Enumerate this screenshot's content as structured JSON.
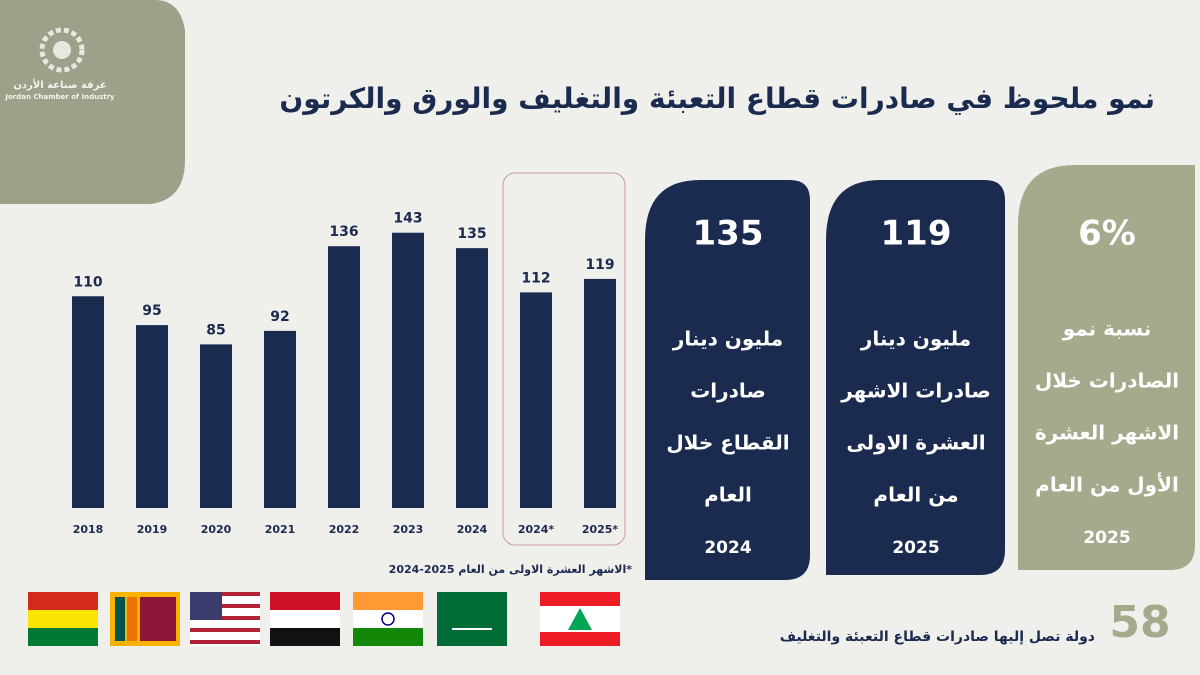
{
  "logo": {
    "arabic": "غرفة صناعة الأردن",
    "english": "Jordan Chamber of Industry"
  },
  "title": "نمو ملحوظ في صادرات قطاع التعبئة والتغليف والورق والكرتون",
  "chart_data": {
    "type": "bar",
    "categories": [
      "2018",
      "2019",
      "2020",
      "2021",
      "2022",
      "2023",
      "2024",
      "2024*",
      "2025*"
    ],
    "values": [
      110,
      95,
      85,
      92,
      136,
      143,
      135,
      112,
      119
    ],
    "color": "#1b2a4f",
    "ylim": [
      0,
      160
    ],
    "note": "*الاشهر العشرة الاولى من العام 2025-2024"
  },
  "cards": [
    {
      "value": 135,
      "lines": [
        "مليون دينار",
        "صادرات",
        "القطاع خلال",
        "العام",
        "2024"
      ]
    },
    {
      "value": 119,
      "lines": [
        "مليون دينار",
        "صادرات الاشهر",
        "العشرة الاولى",
        "من العام",
        "2025"
      ]
    },
    {
      "value": "6%",
      "lines": [
        "نسبة نمو",
        "الصادرات خلال",
        "الاشهر العشرة",
        "الأول من العام",
        "2025"
      ]
    }
  ],
  "footer": {
    "count": 58,
    "text": "دولة تصل إليها صادرات قطاع التعبئة  والتغليف"
  }
}
